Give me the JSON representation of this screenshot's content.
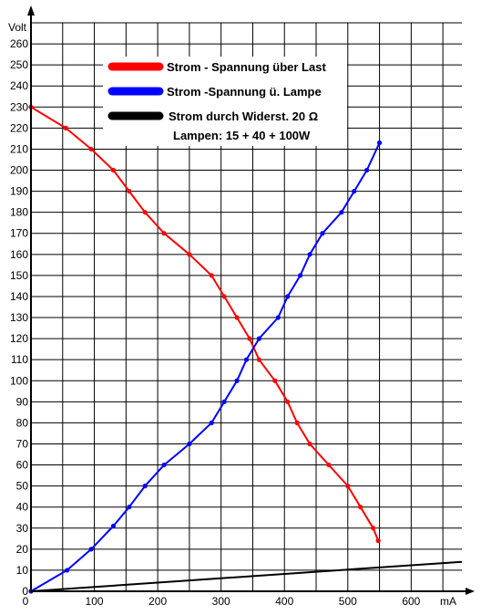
{
  "chart_data": {
    "type": "line",
    "title": "",
    "xlabel": "mA",
    "ylabel": "Volt",
    "xlim": [
      0,
      680
    ],
    "ylim": [
      0,
      270
    ],
    "x_ticks": [
      0,
      100,
      200,
      300,
      400,
      500,
      600
    ],
    "y_ticks": [
      0,
      10,
      20,
      30,
      40,
      50,
      60,
      70,
      80,
      90,
      100,
      110,
      120,
      130,
      140,
      150,
      160,
      170,
      180,
      190,
      200,
      210,
      220,
      230,
      240,
      250,
      260
    ],
    "grid": true,
    "legend_position": "top-center",
    "annotation": "Lampen: 15 + 40 + 100W",
    "series": [
      {
        "name": "Strom - Spannung über Last",
        "color": "#ff0000",
        "points": [
          [
            0,
            230
          ],
          [
            55,
            220
          ],
          [
            95,
            210
          ],
          [
            130,
            200
          ],
          [
            155,
            190
          ],
          [
            180,
            180
          ],
          [
            210,
            170
          ],
          [
            250,
            160
          ],
          [
            285,
            150
          ],
          [
            305,
            140
          ],
          [
            325,
            130
          ],
          [
            345,
            120
          ],
          [
            360,
            110
          ],
          [
            385,
            100
          ],
          [
            405,
            90
          ],
          [
            420,
            80
          ],
          [
            440,
            70
          ],
          [
            470,
            60
          ],
          [
            500,
            50
          ],
          [
            520,
            40
          ],
          [
            540,
            30
          ],
          [
            548,
            24
          ]
        ]
      },
      {
        "name": "Strom -Spannung ü. Lampe",
        "color": "#0000ff",
        "points": [
          [
            0,
            0
          ],
          [
            57,
            10
          ],
          [
            95,
            20
          ],
          [
            130,
            31
          ],
          [
            155,
            40
          ],
          [
            180,
            50
          ],
          [
            210,
            60
          ],
          [
            250,
            70
          ],
          [
            285,
            80
          ],
          [
            305,
            90
          ],
          [
            325,
            100
          ],
          [
            340,
            110
          ],
          [
            360,
            120
          ],
          [
            390,
            130
          ],
          [
            405,
            140
          ],
          [
            425,
            150
          ],
          [
            440,
            160
          ],
          [
            460,
            170
          ],
          [
            490,
            180
          ],
          [
            510,
            190
          ],
          [
            530,
            200
          ],
          [
            550,
            213
          ]
        ]
      },
      {
        "name": "Strom durch Widerst. 20 Ω",
        "color": "#000000",
        "points": [
          [
            0,
            0
          ],
          [
            680,
            14
          ]
        ]
      }
    ]
  }
}
